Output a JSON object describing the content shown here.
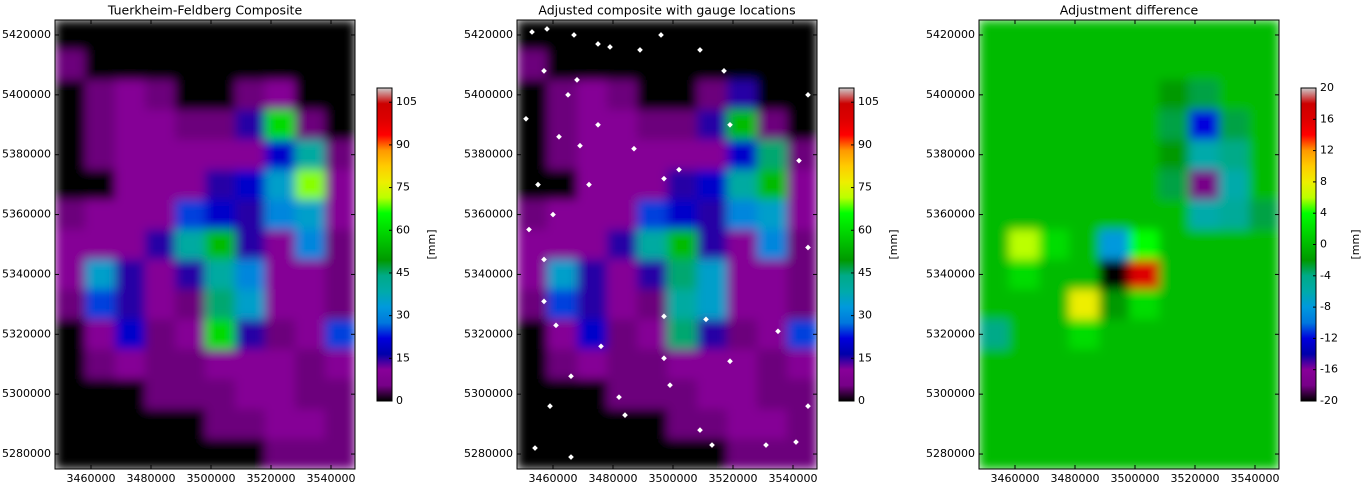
{
  "colormap": [
    "#000000",
    "#770088",
    "#880099",
    "#0000aa",
    "#0000dd",
    "#0077dd",
    "#0099dd",
    "#00aaaa",
    "#00aa88",
    "#009900",
    "#00bb00",
    "#00dd00",
    "#00ff00",
    "#bbff00",
    "#eeee00",
    "#ffcc00",
    "#ff9900",
    "#ff0000",
    "#dd0000",
    "#cc0000",
    "#cccccc"
  ],
  "chart_data": [
    {
      "type": "heatmap",
      "title": "Tuerkheim-Feldberg Composite",
      "xlim": [
        3448000,
        3548000
      ],
      "ylim": [
        5275000,
        5425000
      ],
      "xticks": [
        3460000,
        3480000,
        3500000,
        3520000,
        3540000
      ],
      "yticks": [
        5280000,
        5300000,
        5320000,
        5340000,
        5360000,
        5380000,
        5400000,
        5420000
      ],
      "z": [
        [
          0,
          0,
          0,
          0,
          0,
          0,
          0,
          0,
          0,
          0
        ],
        [
          5,
          0,
          0,
          0,
          0,
          0,
          0,
          0,
          0,
          0
        ],
        [
          0,
          5,
          10,
          5,
          0,
          0,
          5,
          10,
          0,
          0
        ],
        [
          0,
          5,
          10,
          10,
          5,
          5,
          15,
          60,
          5,
          0
        ],
        [
          0,
          5,
          10,
          10,
          10,
          10,
          10,
          20,
          40,
          5
        ],
        [
          0,
          0,
          10,
          10,
          10,
          15,
          20,
          35,
          70,
          10
        ],
        [
          5,
          10,
          10,
          10,
          25,
          20,
          15,
          30,
          35,
          10
        ],
        [
          10,
          10,
          10,
          15,
          40,
          55,
          15,
          10,
          30,
          5
        ],
        [
          10,
          35,
          15,
          10,
          15,
          40,
          30,
          10,
          10,
          5
        ],
        [
          5,
          25,
          15,
          10,
          5,
          45,
          35,
          10,
          10,
          5
        ],
        [
          0,
          10,
          20,
          5,
          10,
          60,
          15,
          5,
          10,
          25
        ],
        [
          0,
          5,
          10,
          5,
          5,
          10,
          10,
          10,
          5,
          10
        ],
        [
          0,
          0,
          0,
          5,
          5,
          5,
          10,
          10,
          5,
          5
        ],
        [
          0,
          0,
          0,
          0,
          0,
          5,
          5,
          10,
          10,
          5
        ],
        [
          0,
          0,
          0,
          0,
          0,
          0,
          0,
          5,
          5,
          5
        ]
      ],
      "colorbar": {
        "label": "[mm]",
        "lim": [
          0,
          110
        ],
        "ticks": [
          0,
          15,
          30,
          45,
          60,
          75,
          90,
          105
        ]
      }
    },
    {
      "type": "heatmap",
      "title": "Adjusted composite with gauge locations",
      "xlim": [
        3448000,
        3548000
      ],
      "ylim": [
        5275000,
        5425000
      ],
      "xticks": [
        3460000,
        3480000,
        3500000,
        3520000,
        3540000
      ],
      "yticks": [
        5280000,
        5300000,
        5320000,
        5340000,
        5360000,
        5380000,
        5400000,
        5420000
      ],
      "z": [
        [
          0,
          0,
          0,
          0,
          0,
          0,
          0,
          0,
          0,
          0
        ],
        [
          5,
          0,
          0,
          0,
          0,
          0,
          0,
          0,
          0,
          0
        ],
        [
          0,
          5,
          10,
          5,
          0,
          0,
          5,
          15,
          0,
          0
        ],
        [
          0,
          5,
          10,
          10,
          5,
          5,
          15,
          55,
          5,
          0
        ],
        [
          0,
          5,
          10,
          10,
          10,
          10,
          10,
          20,
          45,
          5
        ],
        [
          0,
          0,
          10,
          10,
          10,
          15,
          20,
          40,
          55,
          10
        ],
        [
          5,
          10,
          10,
          10,
          25,
          20,
          15,
          30,
          35,
          10
        ],
        [
          10,
          10,
          10,
          15,
          40,
          55,
          15,
          10,
          30,
          5
        ],
        [
          10,
          35,
          15,
          10,
          15,
          45,
          35,
          10,
          10,
          5
        ],
        [
          5,
          25,
          15,
          10,
          5,
          40,
          35,
          10,
          10,
          5
        ],
        [
          0,
          10,
          20,
          5,
          10,
          45,
          15,
          5,
          10,
          25
        ],
        [
          0,
          5,
          10,
          5,
          5,
          10,
          10,
          10,
          5,
          10
        ],
        [
          0,
          0,
          0,
          5,
          5,
          5,
          10,
          10,
          5,
          5
        ],
        [
          0,
          0,
          0,
          0,
          0,
          5,
          5,
          10,
          10,
          5
        ],
        [
          0,
          0,
          0,
          0,
          0,
          0,
          0,
          5,
          5,
          5
        ]
      ],
      "gauges": {
        "color": "#ffffff",
        "x": [
          3453000,
          3458000,
          3467000,
          3475000,
          3479000,
          3489000,
          3496000,
          3509000,
          3457000,
          3468000,
          3465000,
          3451000,
          3462000,
          3475000,
          3469000,
          3487000,
          3497000,
          3502000,
          3455000,
          3460000,
          3472000,
          3452000,
          3457000,
          3461000,
          3476000,
          3497000,
          3499000,
          3511000,
          3519000,
          3535000,
          3545000,
          3459000,
          3484000,
          3509000,
          3513000,
          3531000,
          3541000,
          3517000,
          3519000,
          3545000,
          3542000,
          3545000,
          3457000,
          3466000,
          3482000,
          3497000,
          3454000,
          3466000
        ],
        "y": [
          5421000,
          5422000,
          5420000,
          5417000,
          5416000,
          5415000,
          5420000,
          5415000,
          5408000,
          5405000,
          5400000,
          5392000,
          5386000,
          5390000,
          5383000,
          5382000,
          5372000,
          5375000,
          5370000,
          5360000,
          5370000,
          5355000,
          5331000,
          5323000,
          5316000,
          5312000,
          5303000,
          5325000,
          5311000,
          5321000,
          5296000,
          5296000,
          5293000,
          5288000,
          5283000,
          5283000,
          5284000,
          5408000,
          5390000,
          5400000,
          5378000,
          5349000,
          5345000,
          5306000,
          5299000,
          5326000,
          5282000,
          5279000
        ]
      },
      "colorbar": {
        "label": "[mm]",
        "lim": [
          0,
          110
        ],
        "ticks": [
          0,
          15,
          30,
          45,
          60,
          75,
          90,
          105
        ]
      }
    },
    {
      "type": "heatmap",
      "title": "Adjustment difference",
      "xlim": [
        3448000,
        3548000
      ],
      "ylim": [
        5275000,
        5425000
      ],
      "xticks": [
        3460000,
        3480000,
        3500000,
        3520000,
        3540000
      ],
      "yticks": [
        5280000,
        5300000,
        5320000,
        5340000,
        5360000,
        5380000,
        5400000,
        5420000
      ],
      "z": [
        [
          0,
          0,
          0,
          0,
          0,
          0,
          0,
          0,
          0,
          0
        ],
        [
          0,
          0,
          0,
          0,
          0,
          0,
          0,
          0,
          0,
          0
        ],
        [
          0,
          0,
          0,
          0,
          0,
          0,
          -2,
          -3,
          0,
          0
        ],
        [
          0,
          0,
          0,
          0,
          0,
          0,
          -3,
          -12,
          -3,
          0
        ],
        [
          0,
          0,
          0,
          0,
          0,
          0,
          -2,
          -6,
          -4,
          0
        ],
        [
          0,
          0,
          0,
          0,
          0,
          0,
          -3,
          -18,
          -6,
          0
        ],
        [
          0,
          0,
          0,
          0,
          0,
          0,
          0,
          -6,
          -5,
          -3
        ],
        [
          0,
          6,
          2,
          0,
          -8,
          4,
          0,
          0,
          0,
          0
        ],
        [
          0,
          2,
          0,
          0,
          -20,
          16,
          0,
          0,
          0,
          0
        ],
        [
          0,
          0,
          0,
          8,
          -2,
          2,
          0,
          0,
          0,
          0
        ],
        [
          -4,
          0,
          0,
          2,
          0,
          0,
          0,
          0,
          0,
          0
        ],
        [
          0,
          0,
          0,
          0,
          0,
          0,
          0,
          0,
          0,
          0
        ],
        [
          0,
          0,
          0,
          0,
          0,
          0,
          0,
          0,
          0,
          0
        ],
        [
          0,
          0,
          0,
          0,
          0,
          0,
          0,
          0,
          0,
          0
        ],
        [
          0,
          0,
          0,
          0,
          0,
          0,
          0,
          0,
          0,
          0
        ]
      ],
      "colorbar": {
        "label": "[mm]",
        "lim": [
          -20,
          20
        ],
        "ticks": [
          -20,
          -16,
          -12,
          -8,
          -4,
          0,
          4,
          8,
          12,
          16,
          20
        ]
      }
    }
  ]
}
